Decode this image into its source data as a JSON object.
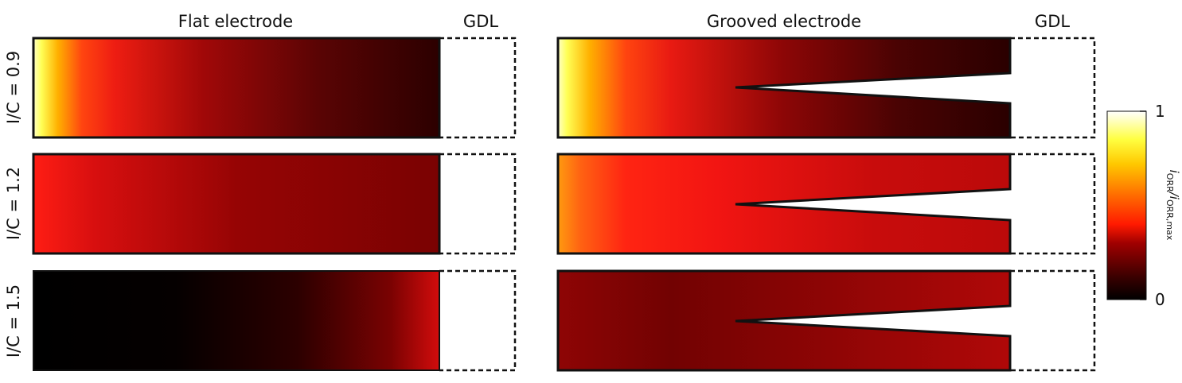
{
  "headers": {
    "flat": "Flat electrode",
    "flat_gdl": "GDL",
    "grooved": "Grooved electrode",
    "grooved_gdl": "GDL"
  },
  "rows": [
    {
      "label": "I/C = 0.9"
    },
    {
      "label": "I/C = 1.2"
    },
    {
      "label": "I/C = 1.5"
    }
  ],
  "colorbar": {
    "max_label": "1",
    "min_label": "0",
    "title": "i",
    "title_sub1": "ORR",
    "title_mid": "/i",
    "title_sub2": "ORR,max",
    "colormap": "hot"
  }
}
